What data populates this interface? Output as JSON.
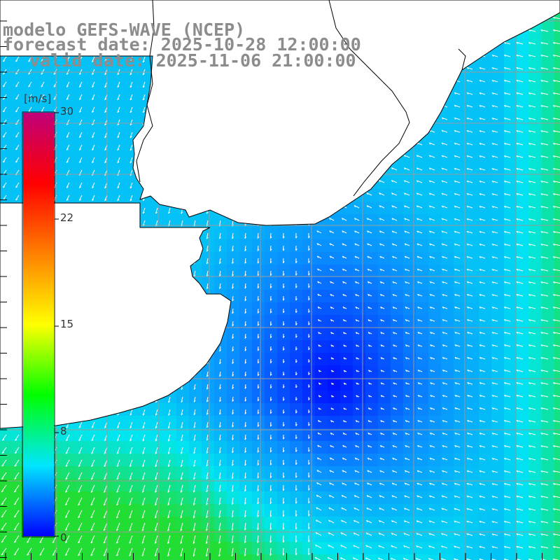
{
  "title": {
    "line1": "modelo GEFS-WAVE (NCEP)",
    "line2": "forecast date: 2025-10-28 12:00:00",
    "line3": "valid date: 2025-11-06 21:00:00"
  },
  "colorbar": {
    "unit": "[m/s]",
    "ticks": [
      "30",
      "22",
      "15",
      "8",
      "0"
    ],
    "min": 0,
    "max": 30,
    "stops": [
      "#0000ff",
      "#00e6ff",
      "#00ff00",
      "#ffff00",
      "#ff8000",
      "#ff0000",
      "#c0007a"
    ]
  },
  "map": {
    "land_color": "#ffffff",
    "coast_color": "#000000",
    "grid_color": "#9a9a9a",
    "wind_min_color": "#0010ff",
    "wind_mid_color": "#0a8cff",
    "wind_high_color": "#00e6f0",
    "wind_max_color": "#22dd33",
    "arrow_color": "#ffffff"
  }
}
